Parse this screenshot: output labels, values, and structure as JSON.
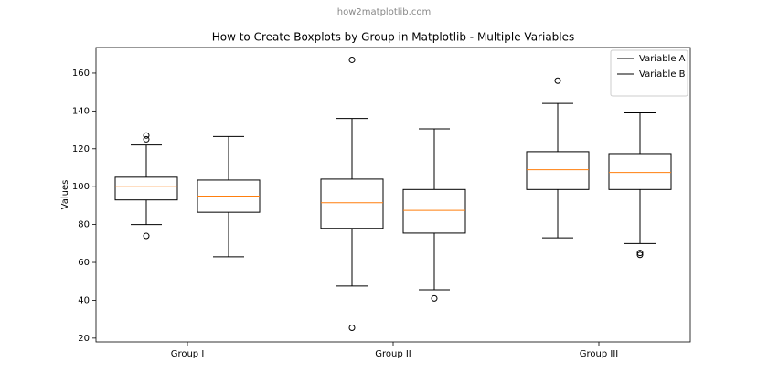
{
  "header": {
    "watermark": "how2matplotlib.com"
  },
  "chart_data": {
    "type": "boxplot",
    "title": "How to Create Boxplots by Group in Matplotlib - Multiple Variables",
    "ylabel": "Values",
    "categories": [
      "Group I",
      "Group II",
      "Group III"
    ],
    "ylim": [
      18,
      173.5
    ],
    "yticks": [
      20,
      40,
      60,
      80,
      100,
      120,
      140,
      160
    ],
    "legend": "upper right",
    "median_color": "#ff7f0e",
    "series": [
      {
        "name": "Variable A",
        "color": "#000000",
        "boxes": [
          {
            "whislo": 80,
            "q1": 93,
            "med": 100,
            "q3": 105,
            "whishi": 122,
            "fliers": [
              127,
              125,
              74
            ]
          },
          {
            "whislo": 47.5,
            "q1": 78,
            "med": 91.5,
            "q3": 104,
            "whishi": 136,
            "fliers": [
              167,
              25.5
            ]
          },
          {
            "whislo": 73,
            "q1": 98.5,
            "med": 109,
            "q3": 118.5,
            "whishi": 144,
            "fliers": [
              156
            ]
          }
        ]
      },
      {
        "name": "Variable B",
        "color": "#000000",
        "boxes": [
          {
            "whislo": 63,
            "q1": 86.5,
            "med": 95,
            "q3": 103.5,
            "whishi": 126.5,
            "fliers": []
          },
          {
            "whislo": 45.5,
            "q1": 75.5,
            "med": 87.5,
            "q3": 98.5,
            "whishi": 130.5,
            "fliers": [
              41
            ]
          },
          {
            "whislo": 70,
            "q1": 98.5,
            "med": 107.5,
            "q3": 117.5,
            "whishi": 139,
            "fliers": [
              65,
              64
            ]
          }
        ]
      }
    ]
  }
}
